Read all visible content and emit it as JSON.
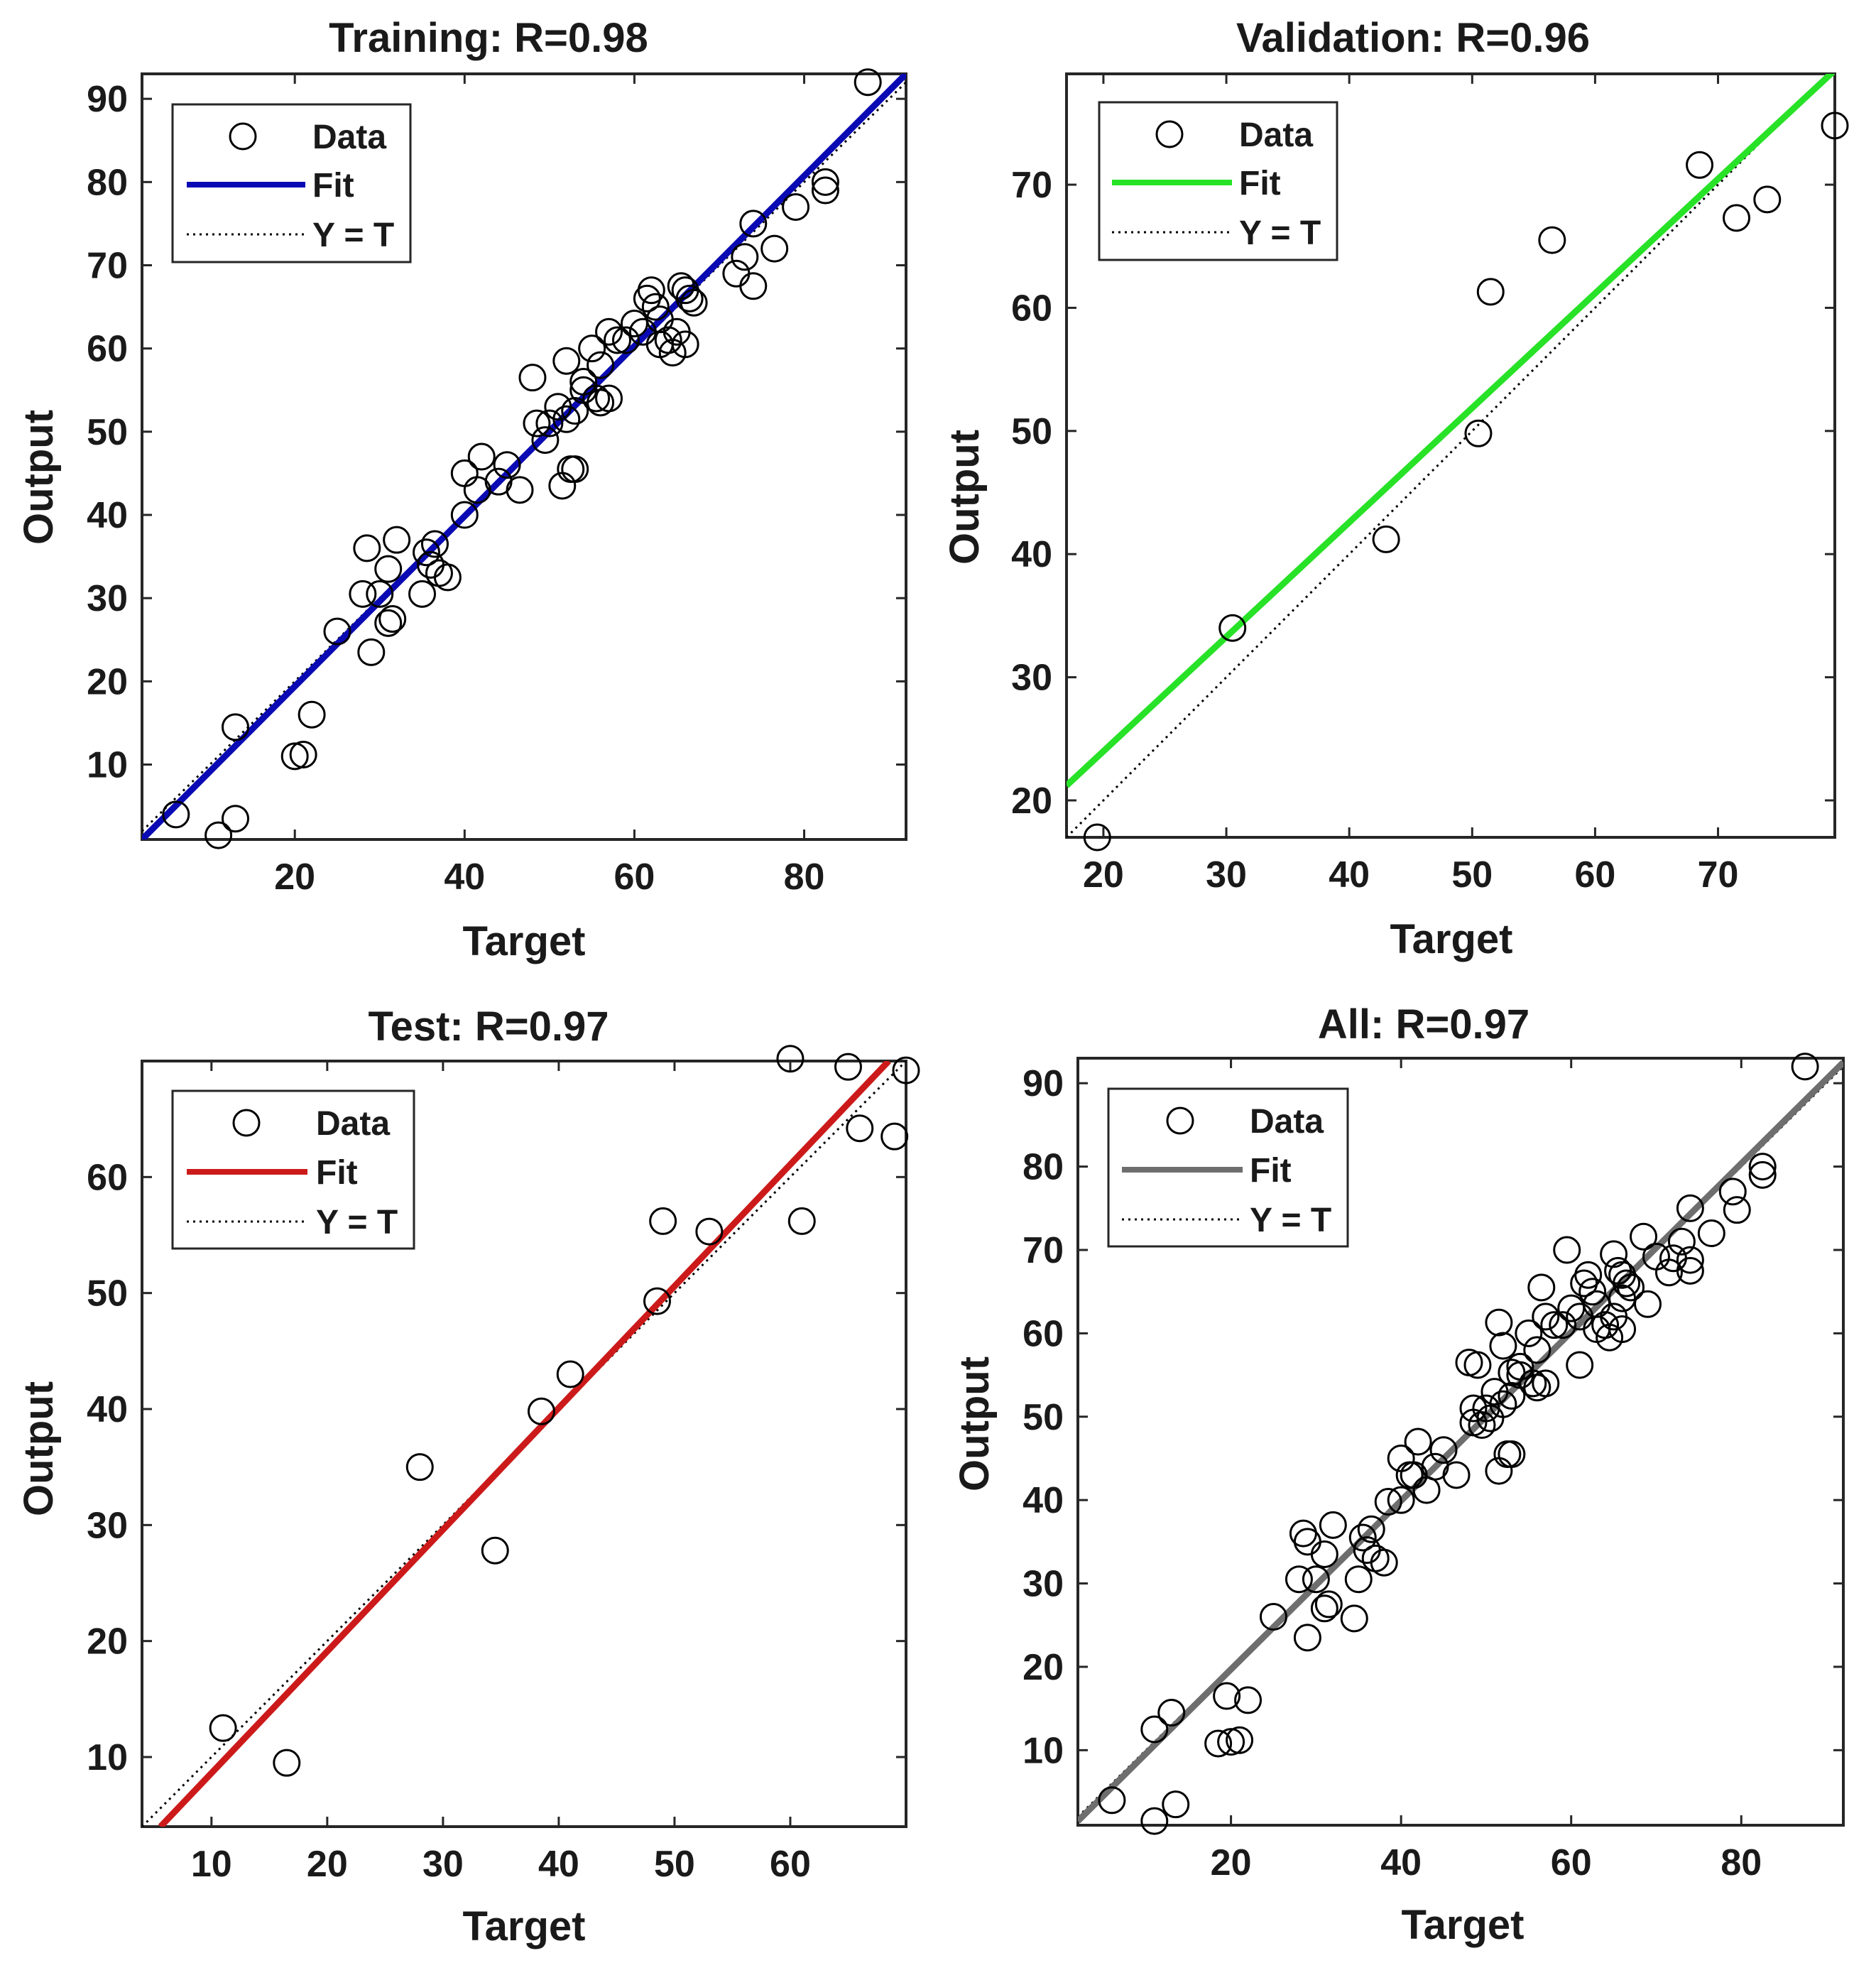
{
  "chart_data": [
    {
      "type": "scatter",
      "id": "training",
      "title": "Training: R=0.98",
      "xlabel": "Target",
      "ylabel": "Output",
      "xlim": [
        2,
        92
      ],
      "ylim": [
        1,
        93
      ],
      "xticks": [
        20,
        40,
        60,
        80
      ],
      "yticks": [
        10,
        20,
        30,
        40,
        50,
        60,
        70,
        80,
        90
      ],
      "fit_color": "#0a0ab4",
      "fit_line": [
        [
          2,
          1.0
        ],
        [
          92,
          93.0
        ]
      ],
      "identity_line": [
        [
          2,
          2
        ],
        [
          92,
          92
        ]
      ],
      "legend": {
        "position": "top-left",
        "entries": [
          "Data",
          "Fit",
          "Y = T"
        ]
      },
      "points": [
        [
          6,
          4
        ],
        [
          11,
          1.5
        ],
        [
          13,
          3.5
        ],
        [
          13,
          14.5
        ],
        [
          20,
          11
        ],
        [
          21,
          11.2
        ],
        [
          22,
          16
        ],
        [
          25,
          26
        ],
        [
          28,
          30.5
        ],
        [
          28.5,
          36
        ],
        [
          29,
          23.5
        ],
        [
          30,
          30.5
        ],
        [
          31,
          27
        ],
        [
          31,
          33.5
        ],
        [
          31.5,
          27.5
        ],
        [
          32,
          37
        ],
        [
          35,
          30.5
        ],
        [
          35.5,
          35.5
        ],
        [
          36,
          34
        ],
        [
          36.5,
          36.5
        ],
        [
          37,
          33
        ],
        [
          38,
          32.5
        ],
        [
          40,
          45
        ],
        [
          40,
          40
        ],
        [
          41.5,
          43
        ],
        [
          42,
          47
        ],
        [
          44,
          44
        ],
        [
          45,
          46
        ],
        [
          46.5,
          43
        ],
        [
          48,
          56.5
        ],
        [
          48.5,
          51
        ],
        [
          49.5,
          49
        ],
        [
          50,
          51
        ],
        [
          51,
          53
        ],
        [
          51.5,
          43.5
        ],
        [
          52,
          58.5
        ],
        [
          52,
          51.5
        ],
        [
          52.5,
          45.5
        ],
        [
          53,
          45.5
        ],
        [
          53,
          52.5
        ],
        [
          54,
          56
        ],
        [
          54,
          55
        ],
        [
          55,
          60
        ],
        [
          55.5,
          54
        ],
        [
          56,
          53.5
        ],
        [
          56,
          58
        ],
        [
          57,
          62
        ],
        [
          57,
          54
        ],
        [
          58,
          61
        ],
        [
          59,
          61
        ],
        [
          60,
          63
        ],
        [
          61,
          62
        ],
        [
          61.5,
          66
        ],
        [
          62,
          67
        ],
        [
          62.5,
          65
        ],
        [
          63,
          63.5
        ],
        [
          63,
          60.5
        ],
        [
          64,
          61
        ],
        [
          64.5,
          59.5
        ],
        [
          65,
          62
        ],
        [
          65.5,
          67.5
        ],
        [
          66,
          67
        ],
        [
          66,
          60.5
        ],
        [
          66.5,
          66
        ],
        [
          67,
          65.5
        ],
        [
          72,
          69
        ],
        [
          73,
          71
        ],
        [
          74,
          75
        ],
        [
          74,
          67.5
        ],
        [
          76.5,
          72
        ],
        [
          79,
          77
        ],
        [
          82.5,
          80
        ],
        [
          82.5,
          79
        ],
        [
          87.5,
          92
        ]
      ]
    },
    {
      "type": "scatter",
      "id": "validation",
      "title": "Validation: R=0.96",
      "xlabel": "Target",
      "ylabel": "Output",
      "xlim": [
        17,
        79.5
      ],
      "ylim": [
        17,
        79
      ],
      "xticks": [
        20,
        30,
        40,
        50,
        60,
        70
      ],
      "yticks": [
        20,
        30,
        40,
        50,
        60,
        70
      ],
      "fit_color": "#27e227",
      "fit_line": [
        [
          17,
          21.2
        ],
        [
          79.5,
          79.3
        ]
      ],
      "identity_line": [
        [
          17,
          17
        ],
        [
          79.5,
          79.5
        ]
      ],
      "legend": {
        "position": "top-left",
        "entries": [
          "Data",
          "Fit",
          "Y = T"
        ]
      },
      "points": [
        [
          19.5,
          17
        ],
        [
          30.5,
          34
        ],
        [
          43,
          41.2
        ],
        [
          50.5,
          49.8
        ],
        [
          51.5,
          61.3
        ],
        [
          56.5,
          65.5
        ],
        [
          68.5,
          71.6
        ],
        [
          71.5,
          67.3
        ],
        [
          74,
          68.8
        ],
        [
          79.5,
          74.8
        ]
      ]
    },
    {
      "type": "scatter",
      "id": "test",
      "title": "Test: R=0.97",
      "xlabel": "Target",
      "ylabel": "Output",
      "xlim": [
        4,
        70
      ],
      "ylim": [
        4,
        70
      ],
      "xticks": [
        10,
        20,
        30,
        40,
        50,
        60
      ],
      "yticks": [
        10,
        20,
        30,
        40,
        50,
        60
      ],
      "fit_color": "#cc1a1a",
      "fit_line": [
        [
          5.6,
          4
        ],
        [
          68.5,
          70
        ]
      ],
      "identity_line": [
        [
          4,
          4
        ],
        [
          70,
          70
        ]
      ],
      "legend": {
        "position": "top-left",
        "entries": [
          "Data",
          "Fit",
          "Y = T"
        ]
      },
      "points": [
        [
          11,
          12.5
        ],
        [
          16.5,
          9.5
        ],
        [
          28,
          35
        ],
        [
          34.5,
          27.8
        ],
        [
          38.5,
          39.8
        ],
        [
          41,
          43
        ],
        [
          48.5,
          49.3
        ],
        [
          49,
          56.2
        ],
        [
          53,
          55.3
        ],
        [
          60,
          70.2
        ],
        [
          61,
          56.2
        ],
        [
          65,
          69.5
        ],
        [
          66,
          64.2
        ],
        [
          69,
          63.5
        ],
        [
          70,
          69.2
        ]
      ]
    },
    {
      "type": "scatter",
      "id": "all",
      "title": "All: R=0.97",
      "xlabel": "Target",
      "ylabel": "Output",
      "xlim": [
        2,
        92
      ],
      "ylim": [
        1,
        93
      ],
      "xticks": [
        20,
        40,
        60,
        80
      ],
      "yticks": [
        10,
        20,
        30,
        40,
        50,
        60,
        70,
        80,
        90
      ],
      "fit_color": "#6e6e6e",
      "fit_line": [
        [
          2,
          1.5
        ],
        [
          92,
          92.5
        ]
      ],
      "identity_line": [
        [
          2,
          2
        ],
        [
          92,
          92
        ]
      ],
      "legend": {
        "position": "top-left",
        "entries": [
          "Data",
          "Fit",
          "Y = T"
        ]
      },
      "points": [
        [
          6,
          4
        ],
        [
          11,
          1.5
        ],
        [
          11,
          12.5
        ],
        [
          13,
          14.5
        ],
        [
          13.5,
          3.5
        ],
        [
          18.5,
          10.8
        ],
        [
          19.5,
          16.5
        ],
        [
          20,
          11
        ],
        [
          21,
          11.2
        ],
        [
          22,
          16
        ],
        [
          25,
          26
        ],
        [
          28,
          30.5
        ],
        [
          28.5,
          36
        ],
        [
          29,
          23.5
        ],
        [
          29,
          35
        ],
        [
          30,
          30.5
        ],
        [
          31,
          27
        ],
        [
          31,
          33.5
        ],
        [
          31.5,
          27.5
        ],
        [
          32,
          37
        ],
        [
          34.5,
          25.8
        ],
        [
          35,
          30.5
        ],
        [
          35.5,
          35.5
        ],
        [
          36,
          34
        ],
        [
          36.5,
          36.5
        ],
        [
          37,
          33
        ],
        [
          38,
          32.5
        ],
        [
          38.5,
          39.8
        ],
        [
          40,
          45
        ],
        [
          40,
          40
        ],
        [
          41,
          43
        ],
        [
          41.5,
          43
        ],
        [
          42,
          47
        ],
        [
          43,
          41.2
        ],
        [
          44,
          44
        ],
        [
          45,
          46
        ],
        [
          46.5,
          43
        ],
        [
          48,
          56.5
        ],
        [
          48.5,
          49.3
        ],
        [
          48.5,
          51
        ],
        [
          49,
          56.2
        ],
        [
          49.5,
          49
        ],
        [
          50,
          51
        ],
        [
          50.5,
          49.8
        ],
        [
          51,
          53
        ],
        [
          51.5,
          43.5
        ],
        [
          51.5,
          61.3
        ],
        [
          52,
          58.5
        ],
        [
          52,
          51.5
        ],
        [
          52.5,
          45.5
        ],
        [
          53,
          45.5
        ],
        [
          53,
          52.5
        ],
        [
          53,
          55.3
        ],
        [
          54,
          56
        ],
        [
          54,
          55
        ],
        [
          55,
          60
        ],
        [
          55.5,
          54
        ],
        [
          56,
          53.5
        ],
        [
          56,
          58
        ],
        [
          56.5,
          65.5
        ],
        [
          57,
          62
        ],
        [
          57,
          54
        ],
        [
          58,
          61
        ],
        [
          59,
          61
        ],
        [
          59.5,
          70
        ],
        [
          60,
          63
        ],
        [
          61,
          56.2
        ],
        [
          61,
          62
        ],
        [
          61.5,
          66
        ],
        [
          62,
          67
        ],
        [
          62.5,
          65
        ],
        [
          63,
          63.5
        ],
        [
          63,
          60.5
        ],
        [
          64,
          61
        ],
        [
          64.5,
          59.5
        ],
        [
          65,
          62
        ],
        [
          65,
          69.5
        ],
        [
          65.5,
          67.5
        ],
        [
          66,
          67
        ],
        [
          66,
          60.5
        ],
        [
          66,
          64.2
        ],
        [
          66.5,
          66
        ],
        [
          67,
          65.5
        ],
        [
          68.5,
          71.6
        ],
        [
          69,
          63.5
        ],
        [
          70,
          69.2
        ],
        [
          71.5,
          67.3
        ],
        [
          72,
          69
        ],
        [
          73,
          71
        ],
        [
          74,
          75
        ],
        [
          74,
          67.5
        ],
        [
          74,
          68.8
        ],
        [
          76.5,
          72
        ],
        [
          79,
          77
        ],
        [
          79.5,
          74.8
        ],
        [
          82.5,
          80
        ],
        [
          82.5,
          79
        ],
        [
          87.5,
          92
        ]
      ]
    }
  ]
}
